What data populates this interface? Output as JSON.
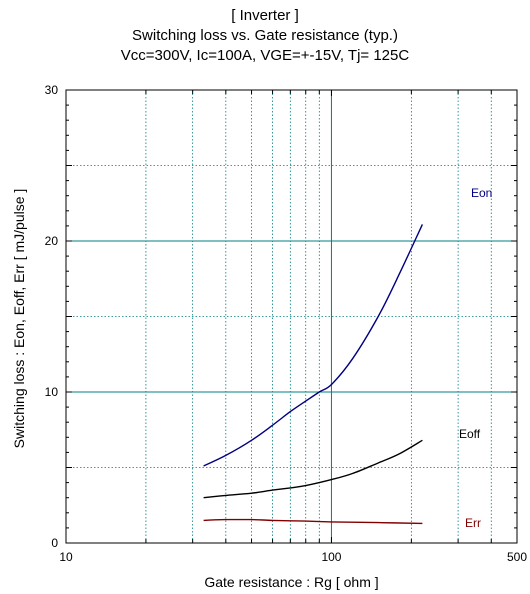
{
  "chart_data": {
    "type": "line",
    "title_lines": [
      "[ Inverter ]",
      "Switching loss  vs.  Gate resistance (typ.)",
      "Vcc=300V, Ic=100A, VGE=+-15V, Tj= 125C"
    ],
    "xlabel": "Gate resistance  :  Rg  [ ohm ]",
    "ylabel": "Switching loss  :  Eon, Eoff, Err  [ mJ/pulse ]",
    "x_scale": "log",
    "xlim": [
      10,
      500
    ],
    "ylim": [
      0,
      30
    ],
    "x_ticks": [
      {
        "value": 10,
        "label": "10"
      },
      {
        "value": 100,
        "label": "100"
      },
      {
        "value": 500,
        "label": "500"
      }
    ],
    "y_ticks": [
      {
        "value": 0,
        "label": "0"
      },
      {
        "value": 10,
        "label": "10"
      },
      {
        "value": 20,
        "label": "20"
      },
      {
        "value": 30,
        "label": "30"
      }
    ],
    "grid": true,
    "series": [
      {
        "name": "Eon",
        "color": "#000080",
        "x": [
          33,
          40,
          50,
          60,
          70,
          80,
          90,
          100,
          120,
          150,
          180,
          220
        ],
        "y": [
          5.1,
          5.8,
          6.8,
          7.8,
          8.7,
          9.4,
          10.0,
          10.5,
          12.2,
          15.0,
          17.8,
          21.1
        ]
      },
      {
        "name": "Eoff",
        "color": "#000000",
        "x": [
          33,
          40,
          50,
          60,
          70,
          80,
          100,
          120,
          150,
          180,
          220
        ],
        "y": [
          3.0,
          3.15,
          3.3,
          3.5,
          3.65,
          3.8,
          4.2,
          4.6,
          5.3,
          5.9,
          6.8
        ]
      },
      {
        "name": "Err",
        "color": "#800000",
        "x": [
          33,
          40,
          50,
          60,
          80,
          100,
          150,
          220
        ],
        "y": [
          1.5,
          1.55,
          1.55,
          1.5,
          1.45,
          1.4,
          1.35,
          1.3
        ]
      }
    ]
  }
}
